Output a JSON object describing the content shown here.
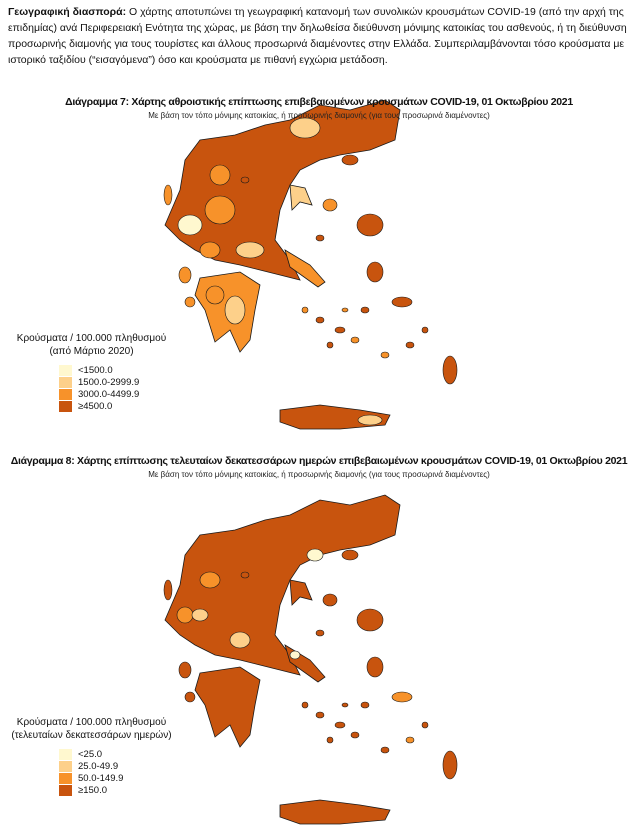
{
  "intro": {
    "label": "Γεωγραφική διασπορά:",
    "text": " Ο χάρτης αποτυπώνει τη γεωγραφική κατανομή των συνολικών κρουσμάτων COVID-19 (από την αρχή της επιδημίας) ανά Περιφερειακή Ενότητα της χώρας, με βάση την δηλωθείσα διεύθυνση μόνιμης κατοικίας του ασθενούς, ή τη διεύθυνση προσωρινής διαμονής για τους τουρίστες και άλλους προσωρινά διαμένοντες στην Ελλάδα. Συμπεριλαμβάνονται τόσο κρούσματα με ιστορικό ταξιδίου (“εισαγόμενα”) όσο και κρούσματα με πιθανή εγχώρια μετάδοση."
  },
  "colors": {
    "c1": "#fff8cf",
    "c2": "#fdd08a",
    "c3": "#f7922a",
    "c4": "#c8540e",
    "border": "#1a1a1a"
  },
  "map1": {
    "title": "Διάγραμμα 7: Χάρτης αθροιστικής επίπτωσης επιβεβαιωμένων κρουσμάτων COVID-19, 01 Οκτωβρίου 2021",
    "subtitle": "Με βάση τον τόπο μόνιμης κατοικίας, ή προσωρινής διαμονής (για τους προσωρινά διαμένοντες)",
    "legend_title": "Κρούσματα / 100.000 πληθυσμού",
    "legend_subtitle": "(από Μάρτιο 2020)",
    "legend": [
      "<1500.0",
      "1500.0-2999.9",
      "3000.0-4499.9",
      "≥4500.0"
    ]
  },
  "map2": {
    "title": "Διάγραμμα 8: Χάρτης επίπτωσης τελευταίων δεκατεσσάρων ημερών επιβεβαιωμένων κρουσμάτων COVID-19, 01 Οκτωβρίου 2021",
    "subtitle": "Με βάση τον τόπο μόνιμης κατοικίας, ή προσωρινής διαμονής (για τους προσωρινά διαμένοντες)",
    "legend_title": "Κρούσματα / 100.000 πληθυσμού",
    "legend_subtitle": "(τελευταίων δεκατεσσάρων ημερών)",
    "legend": [
      "<25.0",
      "25.0-49.9",
      "50.0-149.9",
      "≥150.0"
    ]
  }
}
